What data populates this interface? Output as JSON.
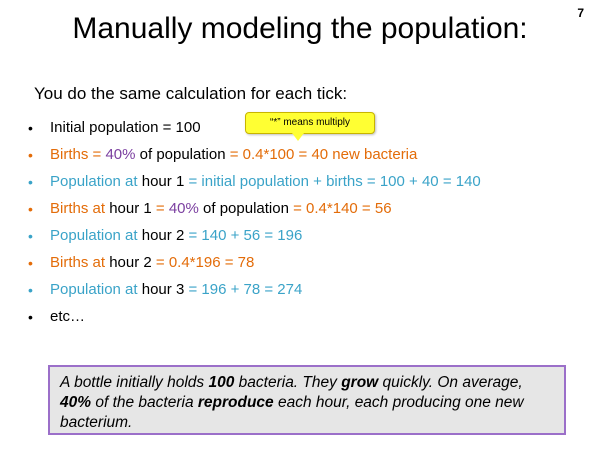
{
  "slide_number": "7",
  "title": "Manually modeling the population:",
  "intro": "You do the same calculation for each tick:",
  "callout": "“*” means multiply",
  "bullets": [
    [
      {
        "t": "Initial population = 100",
        "c": "black"
      }
    ],
    [
      {
        "t": "Births = ",
        "c": "orange"
      },
      {
        "t": "40%",
        "c": "purple"
      },
      {
        "t": " of population ",
        "c": "black"
      },
      {
        "t": "= 0.4*100 = 40 new bacteria",
        "c": "orange"
      }
    ],
    [
      {
        "t": "Population at ",
        "c": "teal"
      },
      {
        "t": "hour 1",
        "c": "black"
      },
      {
        "t": " = initial population + births = 100 + 40 = 140",
        "c": "teal"
      }
    ],
    [
      {
        "t": "Births at ",
        "c": "orange"
      },
      {
        "t": "hour 1",
        "c": "black"
      },
      {
        "t": " = ",
        "c": "orange"
      },
      {
        "t": "40%",
        "c": "purple"
      },
      {
        "t": " of population ",
        "c": "black"
      },
      {
        "t": "= 0.4*140 = 56",
        "c": "orange"
      }
    ],
    [
      {
        "t": "Population at ",
        "c": "teal"
      },
      {
        "t": "hour 2",
        "c": "black"
      },
      {
        "t": " = 140 + 56 = 196",
        "c": "teal"
      }
    ],
    [
      {
        "t": "Births at ",
        "c": "orange"
      },
      {
        "t": "hour 2",
        "c": "black"
      },
      {
        "t": " = 0.4*196 = 78",
        "c": "orange"
      }
    ],
    [
      {
        "t": "Population at ",
        "c": "teal"
      },
      {
        "t": "hour 3",
        "c": "black"
      },
      {
        "t": " = 196 + 78 = 274",
        "c": "teal"
      }
    ],
    [
      {
        "t": "etc…",
        "c": "black"
      }
    ]
  ],
  "bullet_colors": [
    "black",
    "orange",
    "teal",
    "orange",
    "teal",
    "orange",
    "teal",
    "black"
  ],
  "problem_parts": [
    {
      "t": "A bottle initially holds ",
      "b": false
    },
    {
      "t": "100",
      "b": true
    },
    {
      "t": " bacteria.  They ",
      "b": false
    },
    {
      "t": "grow",
      "b": true
    },
    {
      "t": " quickly.  On average, ",
      "b": false
    },
    {
      "t": "40%",
      "b": true
    },
    {
      "t": " of the bacteria ",
      "b": false
    },
    {
      "t": "reproduce",
      "b": true
    },
    {
      "t": " each hour, each producing one new bacterium.",
      "b": false
    }
  ],
  "colors": {
    "orange": "#e36c09",
    "teal": "#3aa3c8",
    "purple": "#7b3fa0",
    "callout": "#ffff33",
    "box_border": "#9b6fc9",
    "box_fill": "#e6e6e6"
  }
}
